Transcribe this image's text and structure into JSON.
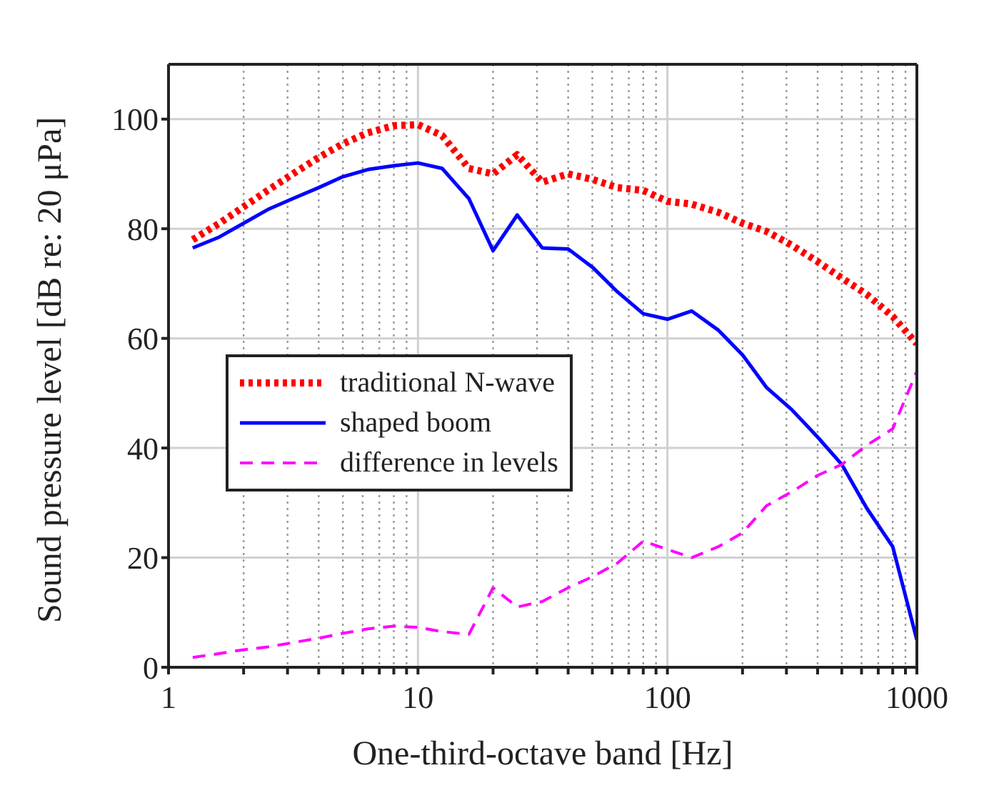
{
  "chart_data": {
    "type": "line",
    "xlabel": "One-third-octave band [Hz]",
    "ylabel": "Sound pressure level [dB re: 20 μPa]",
    "x": [
      1.25,
      1.6,
      2,
      2.5,
      3.15,
      4,
      5,
      6.3,
      8,
      10,
      12.5,
      16,
      20,
      25,
      31.5,
      40,
      50,
      63,
      80,
      100,
      125,
      160,
      200,
      250,
      315,
      400,
      500,
      630,
      800,
      1000
    ],
    "series": [
      {
        "name": "traditional N-wave",
        "color": "#ff0000",
        "line_style": "dotted",
        "values": [
          78,
          81,
          84,
          87,
          90,
          93,
          95.5,
          97.5,
          98.8,
          99,
          97,
          91,
          90,
          93.5,
          88.5,
          90,
          89,
          87.5,
          87,
          85,
          84.5,
          83,
          81,
          79.5,
          77,
          74,
          71,
          68,
          64,
          59
        ]
      },
      {
        "name": "shaped boom",
        "color": "#0000ff",
        "line_style": "solid",
        "values": [
          76.5,
          78.5,
          81,
          83.5,
          85.5,
          87.5,
          89.5,
          90.8,
          91.5,
          92,
          91,
          85.5,
          76,
          82.5,
          76.5,
          76.3,
          73,
          68.5,
          64.5,
          63.5,
          65,
          61.5,
          57,
          51,
          47,
          42,
          37,
          29,
          22,
          5
        ]
      },
      {
        "name": "difference in levels",
        "color": "#ff00ff",
        "line_style": "dashed",
        "values": [
          1.8,
          2.5,
          3.2,
          3.7,
          4.5,
          5.3,
          6.2,
          7,
          7.5,
          7.3,
          6.5,
          6,
          14.5,
          11,
          12,
          14.5,
          16.5,
          19,
          23,
          21.5,
          20,
          22,
          24.5,
          29.5,
          32,
          35,
          37,
          40.5,
          43.5,
          54
        ]
      }
    ],
    "log": "x",
    "xlim": [
      1,
      1000
    ],
    "xticks": [
      1,
      {
        "value": 2,
        "label": null
      },
      {
        "value": 3,
        "label": null
      },
      {
        "value": 4,
        "label": null
      },
      {
        "value": 5,
        "label": null
      },
      {
        "value": 6,
        "label": null
      },
      {
        "value": 7,
        "label": null
      },
      {
        "value": 8,
        "label": null
      },
      {
        "value": 9,
        "label": null
      },
      10,
      {
        "value": 20,
        "label": null
      },
      {
        "value": 30,
        "label": null
      },
      {
        "value": 40,
        "label": null
      },
      {
        "value": 50,
        "label": null
      },
      {
        "value": 60,
        "label": null
      },
      {
        "value": 70,
        "label": null
      },
      {
        "value": 80,
        "label": null
      },
      {
        "value": 90,
        "label": null
      },
      100,
      {
        "value": 200,
        "label": null
      },
      {
        "value": 300,
        "label": null
      },
      {
        "value": 400,
        "label": null
      },
      {
        "value": 500,
        "label": null
      },
      {
        "value": 600,
        "label": null
      },
      {
        "value": 700,
        "label": null
      },
      {
        "value": 800,
        "label": null
      },
      {
        "value": 900,
        "label": null
      },
      1000
    ],
    "ylim": [
      0,
      110
    ],
    "yticks": [
      0,
      20,
      40,
      60,
      80,
      100
    ],
    "grid": true,
    "legend": "left",
    "marker": "none"
  }
}
